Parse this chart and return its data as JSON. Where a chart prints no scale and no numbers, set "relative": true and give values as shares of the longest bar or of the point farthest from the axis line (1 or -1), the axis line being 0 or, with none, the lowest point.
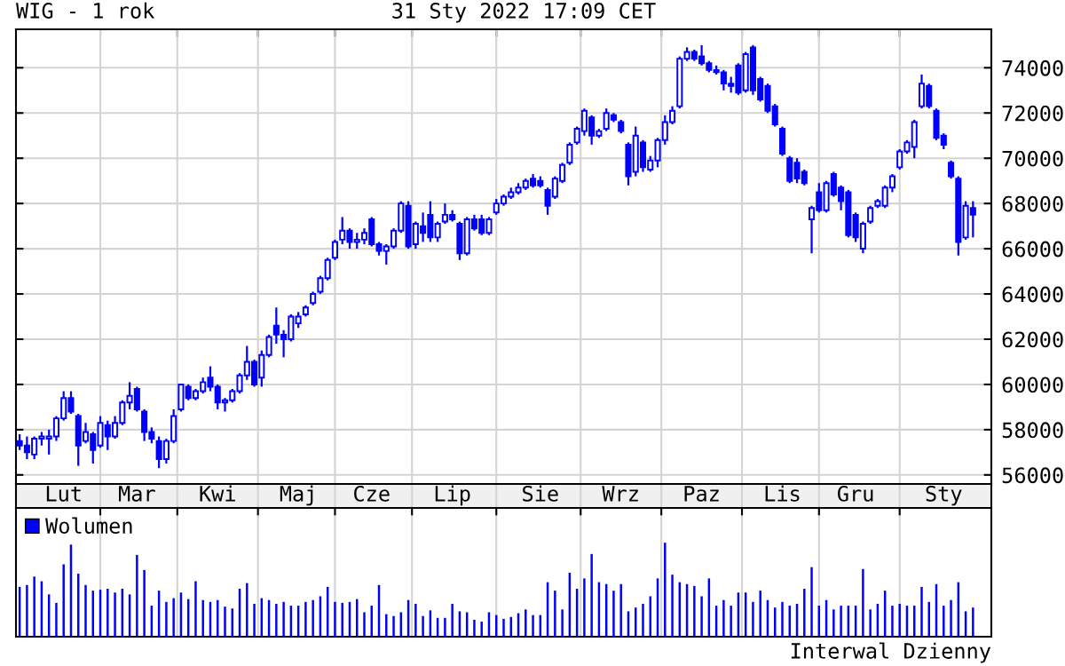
{
  "chart_data": [
    {
      "type": "candlestick",
      "title": "WIG - 1 rok",
      "subtitle": "31 Sty 2022 17:09 CET",
      "color": "#0000ff",
      "categories": [
        null,
        null,
        null,
        null,
        null,
        null,
        "Lut",
        null,
        null,
        null,
        null,
        null,
        null,
        null,
        null,
        null,
        "Mar",
        null,
        null,
        null,
        null,
        null,
        null,
        null,
        null,
        null,
        null,
        "Kwi",
        null,
        null,
        null,
        null,
        null,
        null,
        null,
        null,
        null,
        null,
        "Maj",
        null,
        null,
        null,
        null,
        null,
        null,
        null,
        null,
        null,
        "Cze",
        null,
        null,
        null,
        null,
        null,
        null,
        null,
        null,
        null,
        null,
        "Lip",
        null,
        null,
        null,
        null,
        null,
        null,
        null,
        null,
        null,
        null,
        null,
        "Sie",
        null,
        null,
        null,
        null,
        null,
        null,
        null,
        null,
        null,
        null,
        "Wrz",
        null,
        null,
        null,
        null,
        null,
        null,
        null,
        null,
        null,
        null,
        "Paz",
        null,
        null,
        null,
        null,
        null,
        null,
        null,
        null,
        null,
        null,
        "Lis",
        null,
        null,
        null,
        null,
        null,
        null,
        null,
        null,
        null,
        "Gru",
        null,
        null,
        null,
        null,
        null,
        null,
        null,
        null,
        null,
        null,
        null,
        "Sty",
        null,
        null,
        null,
        null
      ],
      "ohlc": [
        [
          57500,
          57800,
          57100,
          57300
        ],
        [
          57300,
          57700,
          56700,
          57000
        ],
        [
          56900,
          57700,
          56700,
          57600
        ],
        [
          57600,
          57900,
          57300,
          57700
        ],
        [
          57600,
          58000,
          56900,
          57700
        ],
        [
          57700,
          58600,
          57500,
          58500
        ],
        [
          58500,
          59700,
          58400,
          59400
        ],
        [
          59400,
          59700,
          58700,
          58800
        ],
        [
          58600,
          58700,
          56400,
          57300
        ],
        [
          57500,
          58300,
          57400,
          57900
        ],
        [
          57800,
          57900,
          56500,
          57100
        ],
        [
          57300,
          58600,
          57200,
          58300
        ],
        [
          58200,
          58400,
          57100,
          57700
        ],
        [
          57700,
          58600,
          57600,
          58300
        ],
        [
          58300,
          59300,
          58200,
          59200
        ],
        [
          59200,
          60100,
          58900,
          59500
        ],
        [
          59800,
          59900,
          58800,
          58900
        ],
        [
          58800,
          58900,
          57500,
          57900
        ],
        [
          57900,
          58100,
          57400,
          57600
        ],
        [
          57500,
          57700,
          56300,
          56700
        ],
        [
          56700,
          57600,
          56500,
          57500
        ],
        [
          57500,
          58900,
          57400,
          58600
        ],
        [
          58900,
          60000,
          58800,
          60000
        ],
        [
          59900,
          60000,
          59300,
          59400
        ],
        [
          59400,
          59800,
          59300,
          59700
        ],
        [
          59700,
          60300,
          59600,
          60100
        ],
        [
          60300,
          60800,
          59700,
          59900
        ],
        [
          59900,
          60000,
          58900,
          59200
        ],
        [
          59200,
          59400,
          58800,
          59300
        ],
        [
          59300,
          59800,
          59200,
          59700
        ],
        [
          59700,
          60500,
          59600,
          60400
        ],
        [
          60400,
          61700,
          60200,
          61000
        ],
        [
          61000,
          61100,
          59900,
          60000
        ],
        [
          60300,
          61500,
          59900,
          61300
        ],
        [
          61300,
          62200,
          61200,
          62100
        ],
        [
          62600,
          63400,
          61800,
          62200
        ],
        [
          62200,
          62400,
          61200,
          62000
        ],
        [
          62000,
          63100,
          61900,
          63000
        ],
        [
          62700,
          63200,
          62500,
          63000
        ],
        [
          63100,
          63500,
          63000,
          63400
        ],
        [
          63600,
          64100,
          63500,
          64000
        ],
        [
          64100,
          64800,
          64000,
          64700
        ],
        [
          64700,
          65600,
          64600,
          65500
        ],
        [
          65600,
          66400,
          65500,
          66300
        ],
        [
          66400,
          67400,
          66200,
          66800
        ],
        [
          66800,
          66900,
          66000,
          66300
        ],
        [
          66300,
          66700,
          66000,
          66400
        ],
        [
          66400,
          66900,
          66200,
          66700
        ],
        [
          67300,
          67400,
          66100,
          66200
        ],
        [
          66200,
          66300,
          65700,
          65900
        ],
        [
          65900,
          66200,
          65300,
          66100
        ],
        [
          66100,
          66900,
          66000,
          66800
        ],
        [
          66800,
          68100,
          66700,
          68000
        ],
        [
          67900,
          68100,
          66000,
          66100
        ],
        [
          66200,
          67200,
          66000,
          67100
        ],
        [
          67000,
          67600,
          66300,
          66700
        ],
        [
          67500,
          68100,
          66300,
          66500
        ],
        [
          66500,
          67200,
          66300,
          67100
        ],
        [
          67200,
          68000,
          67100,
          67500
        ],
        [
          67500,
          67700,
          67200,
          67300
        ],
        [
          67100,
          67200,
          65500,
          65800
        ],
        [
          65800,
          67400,
          65700,
          67300
        ],
        [
          67300,
          67500,
          66800,
          66900
        ],
        [
          67300,
          67500,
          66600,
          66700
        ],
        [
          66700,
          67400,
          66600,
          67300
        ],
        [
          67600,
          68200,
          67500,
          68000
        ],
        [
          68000,
          68400,
          67900,
          68300
        ],
        [
          68300,
          68700,
          68200,
          68500
        ],
        [
          68500,
          68900,
          68400,
          68700
        ],
        [
          68700,
          69100,
          68600,
          69000
        ],
        [
          69100,
          69300,
          68700,
          68800
        ],
        [
          69000,
          69200,
          68700,
          68800
        ],
        [
          68600,
          68700,
          67500,
          67900
        ],
        [
          68300,
          69200,
          68200,
          69100
        ],
        [
          69000,
          69800,
          68900,
          69700
        ],
        [
          69800,
          70700,
          69700,
          70600
        ],
        [
          70700,
          71400,
          70600,
          71300
        ],
        [
          71200,
          72200,
          71000,
          72100
        ],
        [
          71800,
          71900,
          70600,
          71000
        ],
        [
          71000,
          71300,
          70900,
          71200
        ],
        [
          71300,
          72200,
          71200,
          72000
        ],
        [
          71900,
          72000,
          71600,
          71700
        ],
        [
          71600,
          71700,
          71100,
          71200
        ],
        [
          70600,
          70700,
          68800,
          69200
        ],
        [
          69400,
          71400,
          69200,
          71000
        ],
        [
          70700,
          70800,
          69400,
          69600
        ],
        [
          69500,
          70100,
          69400,
          69900
        ],
        [
          69900,
          70900,
          69600,
          70800
        ],
        [
          70800,
          71900,
          70600,
          71600
        ],
        [
          71600,
          72300,
          71500,
          72100
        ],
        [
          72300,
          74500,
          72200,
          74400
        ],
        [
          74400,
          74900,
          74300,
          74700
        ],
        [
          74700,
          74800,
          74300,
          74400
        ],
        [
          74500,
          75000,
          74100,
          74200
        ],
        [
          74200,
          74300,
          73800,
          73900
        ],
        [
          73900,
          74100,
          73700,
          73800
        ],
        [
          73800,
          73900,
          73000,
          73300
        ],
        [
          73300,
          73600,
          72900,
          73200
        ],
        [
          74100,
          74200,
          72800,
          72900
        ],
        [
          73000,
          74700,
          72900,
          74600
        ],
        [
          74900,
          75000,
          72800,
          73000
        ],
        [
          73500,
          73600,
          72500,
          72600
        ],
        [
          73200,
          73300,
          72000,
          72100
        ],
        [
          72300,
          72400,
          71400,
          71500
        ],
        [
          71300,
          71400,
          70100,
          70200
        ],
        [
          70000,
          70100,
          68900,
          69000
        ],
        [
          69800,
          70000,
          68900,
          69100
        ],
        [
          69400,
          69500,
          68800,
          68900
        ],
        [
          67300,
          67900,
          65800,
          67800
        ],
        [
          68500,
          68900,
          67600,
          67700
        ],
        [
          67700,
          69000,
          67600,
          68900
        ],
        [
          69300,
          69400,
          68300,
          68400
        ],
        [
          68700,
          68800,
          67700,
          68100
        ],
        [
          68500,
          68600,
          66500,
          66600
        ],
        [
          67500,
          67600,
          66300,
          66500
        ],
        [
          66000,
          67200,
          65800,
          67100
        ],
        [
          67200,
          67900,
          67100,
          67800
        ],
        [
          67900,
          68200,
          67800,
          68100
        ],
        [
          67900,
          68800,
          67800,
          68700
        ],
        [
          68700,
          69300,
          68500,
          69200
        ],
        [
          69600,
          70400,
          69500,
          70300
        ],
        [
          70300,
          70800,
          70200,
          70700
        ],
        [
          70500,
          71700,
          70000,
          71600
        ],
        [
          72300,
          73700,
          72200,
          73300
        ],
        [
          73200,
          73300,
          72200,
          72300
        ],
        [
          72100,
          72200,
          70800,
          70900
        ],
        [
          71000,
          71100,
          70400,
          70600
        ],
        [
          69800,
          69900,
          69100,
          69200
        ],
        [
          69100,
          69200,
          65700,
          66300
        ],
        [
          66500,
          68100,
          66400,
          67900
        ],
        [
          67800,
          68100,
          66500,
          67500
        ]
      ],
      "ylim": [
        55600,
        75700
      ],
      "yticks": [
        56000,
        58000,
        60000,
        62000,
        64000,
        66000,
        68000,
        70000,
        72000,
        74000
      ],
      "grid": true
    },
    {
      "type": "bar",
      "relative": true,
      "categories": [
        null,
        null,
        null,
        null,
        null,
        null,
        null,
        null,
        null,
        null,
        null,
        null,
        null,
        null,
        null,
        null,
        null,
        null,
        null,
        null,
        null,
        null,
        null,
        null,
        null,
        null,
        null,
        null,
        null,
        null,
        null,
        null,
        null,
        null,
        null,
        null,
        null,
        null,
        null,
        null,
        null,
        null,
        null,
        null,
        null,
        null,
        null,
        null,
        null,
        null,
        null,
        null,
        null,
        null,
        null,
        null,
        null,
        null,
        null,
        null,
        null,
        null,
        null,
        null,
        null,
        null,
        null,
        null,
        null,
        null,
        null,
        null,
        null,
        null,
        null,
        null,
        null,
        null,
        null,
        null,
        null,
        null,
        null,
        null,
        null,
        null,
        null,
        null,
        null,
        null,
        null,
        null,
        null,
        null,
        null,
        null,
        null,
        null,
        null,
        null,
        null,
        null,
        null,
        null,
        null,
        null,
        null,
        null,
        null,
        null,
        null,
        null,
        null,
        null,
        null,
        null,
        null,
        null,
        null,
        null,
        null,
        null,
        null,
        null,
        null,
        null,
        null,
        null,
        null,
        null,
        null
      ],
      "series": [
        {
          "name": "Wolumen",
          "color": "#0000ff",
          "values": [
            0.53,
            0.55,
            0.64,
            0.59,
            0.45,
            0.36,
            0.77,
            0.98,
            0.67,
            0.55,
            0.49,
            0.5,
            0.51,
            0.47,
            0.51,
            0.45,
            0.87,
            0.71,
            0.33,
            0.49,
            0.37,
            0.41,
            0.47,
            0.4,
            0.59,
            0.39,
            0.37,
            0.39,
            0.32,
            0.3,
            0.51,
            0.57,
            0.35,
            0.41,
            0.39,
            0.35,
            0.37,
            0.33,
            0.33,
            0.37,
            0.39,
            0.43,
            0.53,
            0.37,
            0.36,
            0.37,
            0.4,
            0.26,
            0.33,
            0.55,
            0.24,
            0.22,
            0.26,
            0.39,
            0.35,
            0.22,
            0.28,
            0.2,
            0.2,
            0.35,
            0.27,
            0.26,
            0.18,
            0.16,
            0.26,
            0.23,
            0.19,
            0.21,
            0.25,
            0.29,
            0.23,
            0.23,
            0.58,
            0.49,
            0.29,
            0.68,
            0.51,
            0.62,
            0.88,
            0.58,
            0.56,
            0.49,
            0.56,
            0.27,
            0.31,
            0.35,
            0.43,
            0.62,
            1,
            0.66,
            0.58,
            0.56,
            0.54,
            0.43,
            0.62,
            0.33,
            0.39,
            0.33,
            0.47,
            0.47,
            0.37,
            0.49,
            0.39,
            0.31,
            0.37,
            0.33,
            0.35,
            0.51,
            0.74,
            0.33,
            0.39,
            0.29,
            0.33,
            0.33,
            0.33,
            0.72,
            0.29,
            0.35,
            0.49,
            0.33,
            0.35,
            0.33,
            0.33,
            0.53,
            0.37,
            0.56,
            0.33,
            0.39,
            0.58,
            0.27,
            0.31
          ]
        }
      ],
      "tick_labels": false,
      "grid": "x",
      "legend": "top left",
      "annotations": [
        "Interwal Dzienny"
      ]
    }
  ]
}
